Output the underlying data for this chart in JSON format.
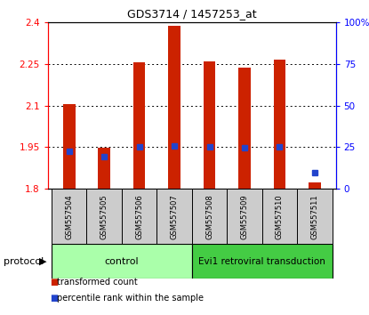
{
  "title": "GDS3714 / 1457253_at",
  "samples": [
    "GSM557504",
    "GSM557505",
    "GSM557506",
    "GSM557507",
    "GSM557508",
    "GSM557509",
    "GSM557510",
    "GSM557511"
  ],
  "red_top": [
    2.105,
    1.948,
    2.255,
    2.385,
    2.26,
    2.235,
    2.265,
    1.825
  ],
  "blue_y": [
    1.935,
    1.915,
    1.95,
    1.955,
    1.95,
    1.948,
    1.95,
    1.86
  ],
  "bar_bottom": 1.8,
  "ylim": [
    1.8,
    2.4
  ],
  "yticks_left": [
    1.8,
    1.95,
    2.1,
    2.25,
    2.4
  ],
  "yticks_right": [
    0,
    25,
    50,
    75,
    100
  ],
  "right_ylim": [
    0,
    100
  ],
  "red_color": "#cc2200",
  "blue_color": "#2244cc",
  "bar_width": 0.35,
  "control_label": "control",
  "transduction_label": "Evi1 retroviral transduction",
  "protocol_label": "protocol",
  "legend_red": "transformed count",
  "legend_blue": "percentile rank within the sample",
  "control_n": 4,
  "transduction_n": 4,
  "control_bg": "#aaffaa",
  "transduction_bg": "#44cc44",
  "sample_bg": "#cccccc",
  "title_fontsize": 9,
  "tick_fontsize": 7.5,
  "sample_fontsize": 6
}
